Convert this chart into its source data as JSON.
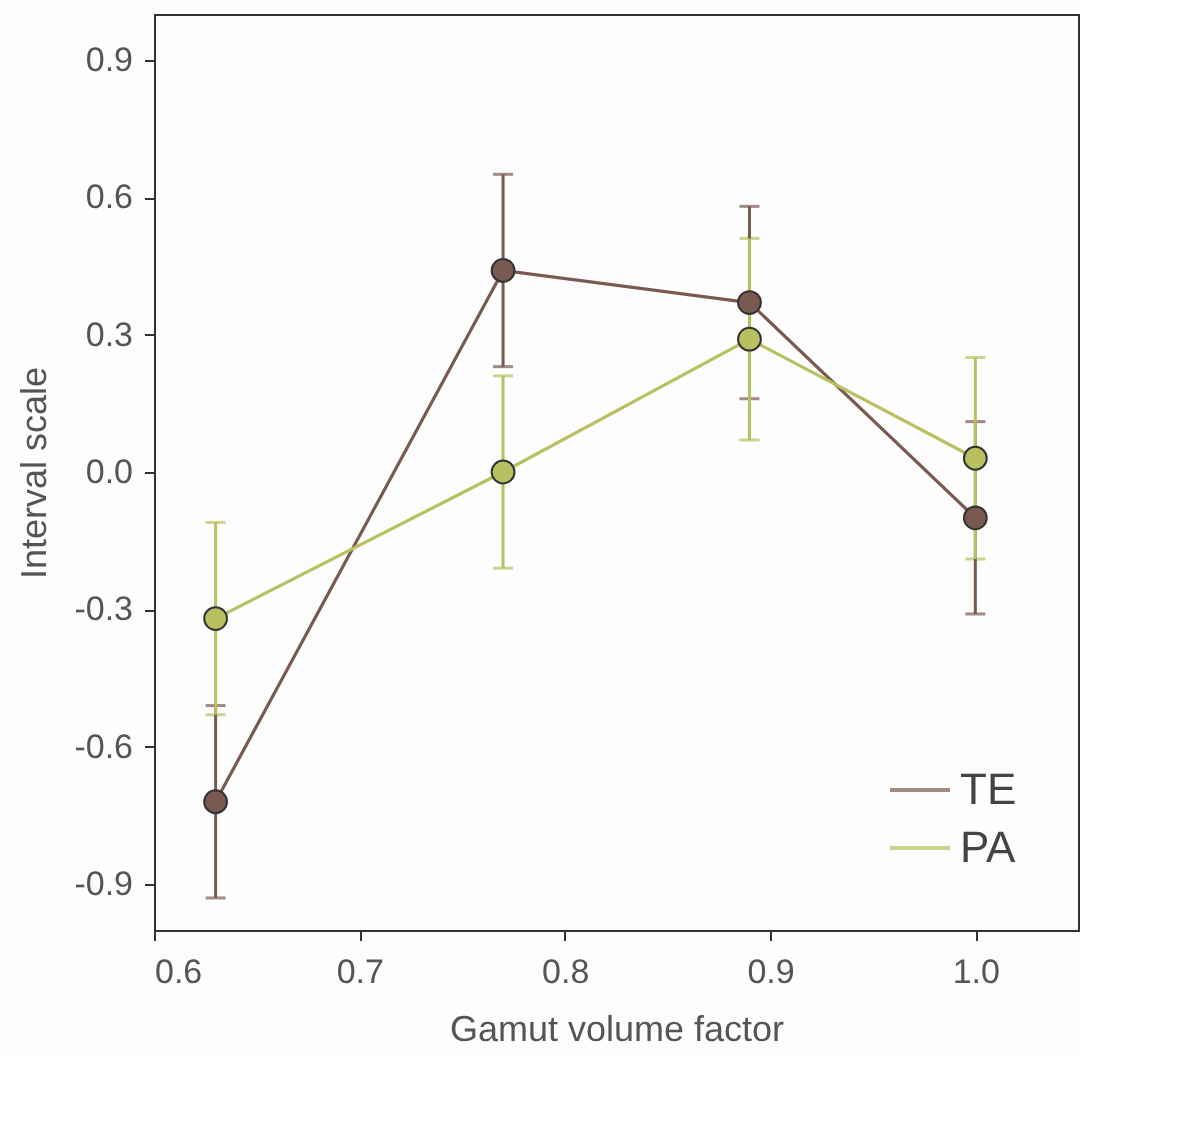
{
  "chart_data": {
    "type": "line",
    "xlabel": "Gamut volume factor",
    "ylabel": "Interval scale",
    "x": [
      0.63,
      0.77,
      0.89,
      1.0
    ],
    "series": [
      {
        "name": "TE",
        "color": "#7a5a50",
        "values": [
          -0.72,
          0.44,
          0.37,
          -0.1
        ],
        "errors": [
          0.21,
          0.21,
          0.21,
          0.21
        ]
      },
      {
        "name": "PA",
        "color": "#b8c060",
        "values": [
          -0.32,
          0.0,
          0.29,
          0.03
        ],
        "errors": [
          0.21,
          0.21,
          0.22,
          0.22
        ]
      }
    ],
    "xlim": [
      0.6,
      1.05
    ],
    "xticks": [
      0.6,
      0.7,
      0.8,
      0.9,
      {
        "value": 1,
        "label": "1.0"
      }
    ],
    "ylim": [
      -1.0,
      1.0
    ],
    "yticks": [
      -0.9,
      -0.6,
      -0.3,
      {
        "value": 0,
        "label": "0.0"
      },
      0.3,
      0.6,
      0.9
    ],
    "grid": false,
    "legend": "bottom right",
    "marker": "circle",
    "line_style": "solid"
  }
}
